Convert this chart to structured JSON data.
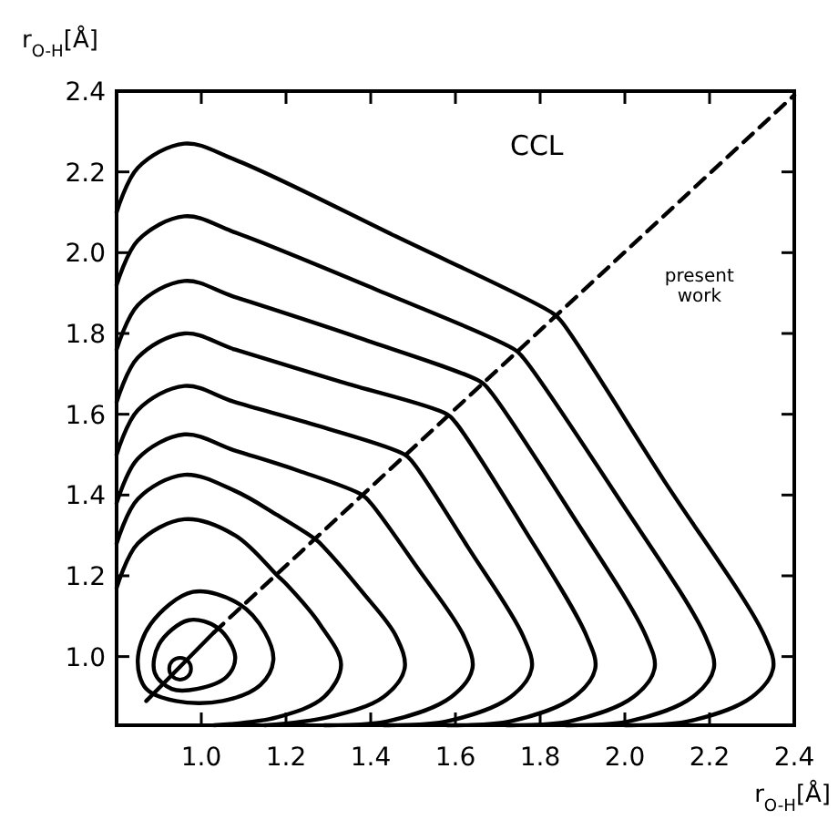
{
  "chart_data": {
    "type": "line",
    "xlabel": "r$_{O-H}$[Å]",
    "ylabel": "r$_{O-H}$[Å]",
    "xlim": [
      0.8,
      2.4
    ],
    "ylim": [
      0.83,
      2.4
    ],
    "xticks": [
      {
        "value": 1,
        "label": "1.0"
      },
      1.2,
      1.4,
      1.6,
      1.8,
      {
        "value": 2,
        "label": "2.0"
      },
      2.2,
      2.4
    ],
    "yticks": [
      {
        "value": 1,
        "label": "1.0"
      },
      1.2,
      1.4,
      1.6,
      1.8,
      {
        "value": 2,
        "label": "2.0"
      },
      2.2,
      2.4
    ],
    "grid": false,
    "marker": "none",
    "line_style": "solid",
    "annotations": [
      "CCL",
      "present work"
    ],
    "series": [
      {
        "color": "#000000",
        "x": [
          0.8,
          0.85,
          0.96,
          1.08,
          1.46,
          1.83,
          1.85,
          2.09,
          2.33,
          2.35,
          2.3,
          2.15,
          2.0
        ],
        "values": [
          2.1,
          2.21,
          2.27,
          2.23,
          2.04,
          1.85,
          1.83,
          1.44,
          1.05,
          0.97,
          0.9,
          0.84,
          0.83
        ]
      },
      {
        "color": "#000000",
        "x": [
          0.8,
          0.85,
          0.96,
          1.08,
          1.41,
          1.74,
          1.76,
          1.98,
          2.19,
          2.21,
          2.16,
          2.01,
          1.86
        ],
        "values": [
          1.92,
          2.03,
          2.09,
          2.05,
          1.91,
          1.76,
          1.74,
          1.4,
          1.05,
          0.97,
          0.9,
          0.84,
          0.83
        ]
      },
      {
        "color": "#000000",
        "x": [
          0.8,
          0.85,
          0.96,
          1.08,
          1.37,
          1.66,
          1.68,
          1.87,
          2.05,
          2.07,
          2.02,
          1.87,
          1.72
        ],
        "values": [
          1.76,
          1.87,
          1.93,
          1.89,
          1.79,
          1.68,
          1.66,
          1.36,
          1.05,
          0.97,
          0.9,
          0.84,
          0.83
        ]
      },
      {
        "color": "#000000",
        "x": [
          0.8,
          0.85,
          0.96,
          1.08,
          1.33,
          1.58,
          1.6,
          1.76,
          1.91,
          1.93,
          1.88,
          1.73,
          1.58
        ],
        "values": [
          1.63,
          1.74,
          1.8,
          1.76,
          1.68,
          1.6,
          1.58,
          1.32,
          1.05,
          0.97,
          0.9,
          0.84,
          0.83
        ]
      },
      {
        "color": "#000000",
        "x": [
          0.8,
          0.85,
          0.96,
          1.08,
          1.28,
          1.48,
          1.5,
          1.63,
          1.76,
          1.78,
          1.73,
          1.58,
          1.43
        ],
        "values": [
          1.5,
          1.61,
          1.67,
          1.63,
          1.57,
          1.5,
          1.48,
          1.27,
          1.05,
          0.97,
          0.9,
          0.84,
          0.83
        ]
      },
      {
        "color": "#000000",
        "x": [
          0.8,
          0.85,
          0.96,
          1.08,
          1.23,
          1.38,
          1.4,
          1.51,
          1.62,
          1.64,
          1.59,
          1.44,
          1.29
        ],
        "values": [
          1.38,
          1.49,
          1.55,
          1.51,
          1.46,
          1.4,
          1.38,
          1.22,
          1.05,
          0.97,
          0.9,
          0.84,
          0.83
        ]
      },
      {
        "color": "#000000",
        "x": [
          0.8,
          0.85,
          0.96,
          1.08,
          1.18,
          1.27,
          1.29,
          1.38,
          1.46,
          1.48,
          1.43,
          1.3,
          1.15
        ],
        "values": [
          1.28,
          1.39,
          1.45,
          1.41,
          1.35,
          1.29,
          1.27,
          1.16,
          1.05,
          0.97,
          0.9,
          0.85,
          0.83
        ]
      },
      {
        "color": "#000000",
        "x": [
          0.8,
          0.85,
          0.96,
          1.08,
          1.18,
          1.2,
          1.28,
          1.33,
          1.29,
          1.18,
          1.03
        ],
        "values": [
          1.17,
          1.28,
          1.34,
          1.3,
          1.2,
          1.18,
          1.08,
          0.98,
          0.9,
          0.85,
          0.83
        ]
      },
      {
        "color": "#000000",
        "x": [
          0.87,
          1.03
        ],
        "values": [
          0.89,
          1.06
        ]
      },
      {
        "color": "#000000",
        "line_style": "dashed",
        "x": [
          1.03,
          2.4
        ],
        "values": [
          1.06,
          2.39
        ]
      },
      {
        "type": "scatter",
        "marker": "circle",
        "color": "#000000",
        "x": [
          0.95
        ],
        "values": [
          0.97
        ]
      }
    ]
  }
}
